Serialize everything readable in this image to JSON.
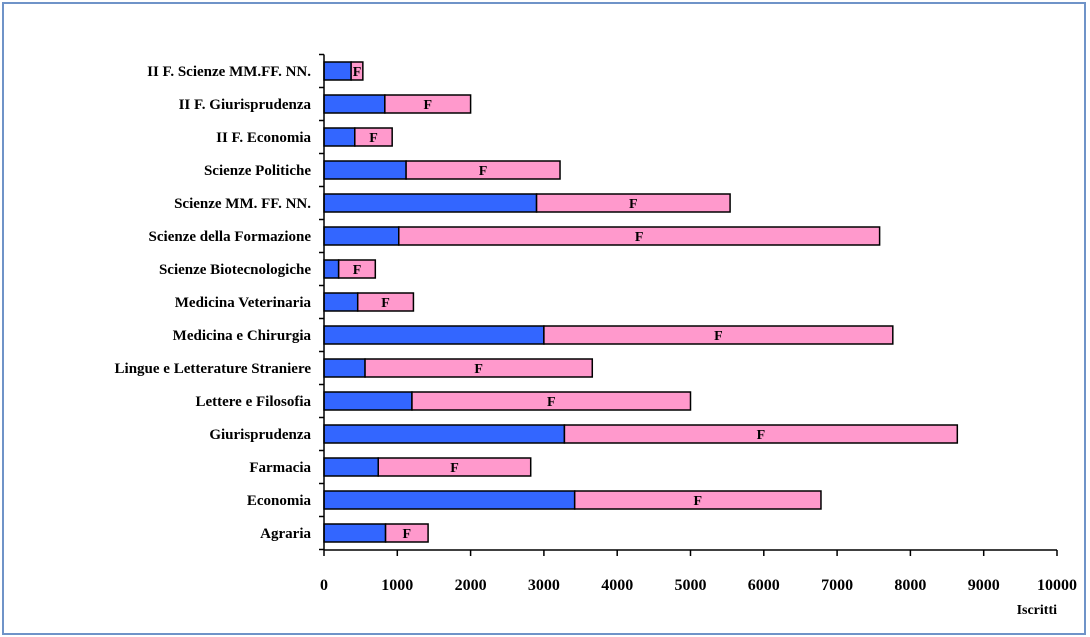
{
  "chart_data": {
    "type": "bar",
    "orientation": "horizontal",
    "stacked": true,
    "categories": [
      "Agraria",
      "Economia",
      "Farmacia",
      "Giurisprudenza",
      "Lettere e Filosofia",
      "Lingue e Letterature Straniere",
      "Medicina e Chirurgia",
      "Medicina Veterinaria",
      "Scienze Biotecnologiche",
      "Scienze della Formazione",
      "Scienze MM. FF. NN.",
      "Scienze Politiche",
      "II F. Economia",
      "II F. Giurisprudenza",
      "II F. Scienze MM.FF. NN."
    ],
    "series": [
      {
        "name": "",
        "color": "#3366ff",
        "values": [
          840,
          3420,
          740,
          3280,
          1200,
          560,
          3000,
          460,
          200,
          1020,
          2900,
          1120,
          420,
          830,
          370
        ]
      },
      {
        "name": "F",
        "color": "#ff99cc",
        "values": [
          580,
          3360,
          2080,
          5360,
          3800,
          3100,
          4760,
          760,
          500,
          6560,
          2640,
          2100,
          510,
          1170,
          160
        ]
      }
    ],
    "bar_label": "F",
    "xlabel": "Iscritti",
    "ylabel": "",
    "title": "",
    "xlim": [
      0,
      10000
    ],
    "xticks": [
      0,
      1000,
      2000,
      3000,
      4000,
      5000,
      6000,
      7000,
      8000,
      9000,
      10000
    ],
    "grid": false,
    "legend": "none"
  }
}
